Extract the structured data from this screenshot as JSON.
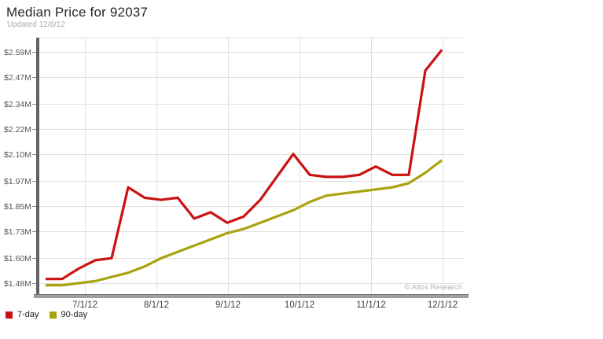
{
  "chart_data": {
    "type": "line",
    "title": "Median Price for 92037",
    "subtitle": "Updated 12/8/12",
    "grid": true,
    "legend_position": "bottom-left",
    "x_axis": {
      "tick_labels": [
        "7/1/12",
        "8/1/12",
        "9/1/12",
        "10/1/12",
        "11/1/12",
        "12/1/12"
      ]
    },
    "y_axis": {
      "tick_labels": [
        "$2.59M",
        "$2.47M",
        "$2.34M",
        "$2.22M",
        "$2.10M",
        "$1.97M",
        "$1.85M",
        "$1.73M",
        "$1.60M",
        "$1.48M"
      ],
      "tick_values": [
        2.59,
        2.47,
        2.34,
        2.22,
        2.1,
        1.97,
        1.85,
        1.73,
        1.6,
        1.48
      ],
      "range": [
        1.48,
        2.64
      ],
      "unit": "million USD"
    },
    "series": [
      {
        "name": "7-day",
        "color": "#cc1111",
        "values": [
          1.5,
          1.5,
          1.55,
          1.59,
          1.6,
          1.94,
          1.89,
          1.88,
          1.89,
          1.79,
          1.82,
          1.77,
          1.8,
          1.88,
          1.99,
          2.1,
          2.0,
          1.99,
          1.99,
          2.0,
          2.04,
          2.0,
          2.0,
          2.5,
          2.6
        ]
      },
      {
        "name": "90-day",
        "color": "#a8a410",
        "values": [
          1.47,
          1.47,
          1.48,
          1.49,
          1.51,
          1.53,
          1.56,
          1.6,
          1.63,
          1.66,
          1.69,
          1.72,
          1.74,
          1.77,
          1.8,
          1.83,
          1.87,
          1.9,
          1.91,
          1.92,
          1.93,
          1.94,
          1.96,
          2.01,
          2.07
        ]
      }
    ]
  },
  "watermark": {
    "text": "© Altos Research"
  }
}
